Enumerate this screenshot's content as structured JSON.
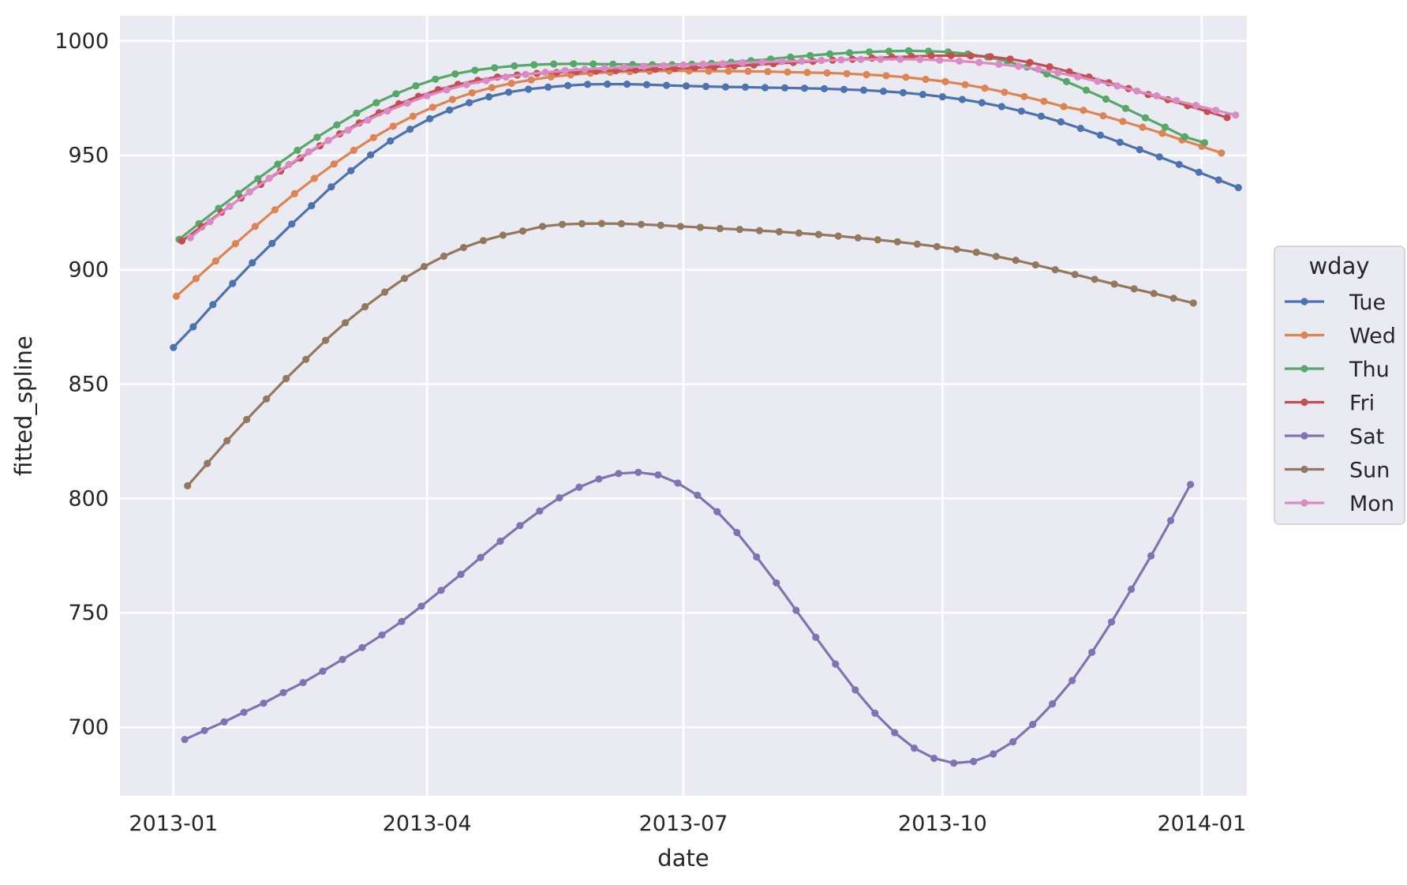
{
  "chart_data": {
    "type": "line",
    "xlabel": "date",
    "ylabel": "fitted_spline",
    "x_ticks": [
      "2013-01",
      "2013-04",
      "2013-07",
      "2013-10",
      "2014-01"
    ],
    "y_ticks": [
      700,
      750,
      800,
      850,
      900,
      950,
      1000
    ],
    "xlim": [
      "2012-12-13",
      "2014-01-17"
    ],
    "ylim": [
      670,
      1011
    ],
    "grid": true,
    "legend": {
      "title": "wday",
      "placement": "right"
    },
    "series": [
      {
        "name": "Tue",
        "color": "#4c72b0",
        "start": "2013-01-01",
        "step_days": 7,
        "values": [
          866,
          875,
          884.7,
          894,
          903,
          911.5,
          920,
          928,
          936.2,
          943.3,
          950.2,
          956.3,
          961.4,
          966,
          969.8,
          973,
          975.6,
          977.6,
          978.9,
          979.8,
          980.5,
          981,
          981.1,
          981.1,
          980.9,
          980.6,
          980.3,
          980.1,
          979.9,
          979.8,
          979.6,
          979.5,
          979.3,
          979.1,
          978.8,
          978.5,
          978,
          977.4,
          976.6,
          975.6,
          974.4,
          973,
          971.3,
          969.3,
          967.1,
          964.6,
          961.8,
          958.8,
          955.7,
          952.5,
          949.3,
          946,
          942.6,
          939.2,
          935.9
        ]
      },
      {
        "name": "Wed",
        "color": "#dd8452",
        "start": "2013-01-02",
        "step_days": 7,
        "values": [
          888.4,
          896.1,
          903.8,
          911.4,
          918.9,
          926.2,
          933.2,
          939.9,
          946.2,
          952.2,
          957.7,
          962.7,
          967.1,
          971,
          974.4,
          977.3,
          979.6,
          981.5,
          983,
          984.3,
          985.2,
          985.9,
          986.3,
          986.6,
          986.8,
          986.9,
          986.9,
          986.8,
          986.8,
          986.7,
          986.6,
          986.4,
          986.2,
          986,
          985.7,
          985.3,
          984.8,
          984.1,
          983.2,
          982.2,
          980.9,
          979.4,
          977.6,
          975.7,
          973.6,
          971.3,
          969.7,
          967.3,
          964.8,
          962.3,
          959.6,
          956.7,
          953.9,
          951
        ]
      },
      {
        "name": "Thu",
        "color": "#55a868",
        "start": "2013-01-03",
        "step_days": 7,
        "values": [
          913.3,
          920.1,
          926.8,
          933.3,
          939.8,
          946.1,
          952.2,
          957.9,
          963.3,
          968.4,
          973,
          976.9,
          980.4,
          983.3,
          985.6,
          987.2,
          988.3,
          989.1,
          989.6,
          989.9,
          990,
          989.9,
          989.8,
          989.7,
          989.6,
          989.6,
          989.8,
          990.2,
          990.7,
          991.4,
          992.1,
          992.9,
          993.6,
          994.3,
          994.8,
          995.2,
          995.5,
          995.7,
          995.5,
          995.2,
          994.3,
          993,
          991.1,
          988.6,
          985.6,
          982.2,
          978.5,
          974.6,
          970.5,
          966.4,
          962.3,
          958.1,
          955.5
        ]
      },
      {
        "name": "Fri",
        "color": "#c44e52",
        "start": "2013-01-04",
        "step_days": 7,
        "values": [
          912.6,
          918.8,
          925.1,
          931.3,
          937.3,
          943.1,
          948.8,
          954.2,
          959.4,
          964.2,
          968.6,
          972.5,
          975.8,
          978.7,
          981,
          982.8,
          984.2,
          985.1,
          985.8,
          986.2,
          986.6,
          986.8,
          987,
          987.3,
          987.6,
          987.9,
          988.3,
          988.7,
          989.1,
          989.5,
          990.1,
          990.6,
          991.1,
          991.6,
          992,
          992.5,
          992.9,
          993.2,
          993.5,
          993.6,
          993.5,
          993.1,
          992.1,
          990.6,
          988.7,
          986.5,
          984.2,
          981.7,
          979.2,
          976.6,
          974.3,
          971.7,
          969.2,
          966.5
        ]
      },
      {
        "name": "Sat",
        "color": "#8172b3",
        "start": "2013-01-05",
        "step_days": 7,
        "values": [
          694.6,
          698.5,
          702.3,
          706.5,
          710.5,
          715.1,
          719.5,
          724.5,
          729.6,
          734.8,
          740.3,
          746.2,
          752.9,
          759.8,
          766.8,
          774.2,
          781.3,
          788.1,
          794.5,
          800.3,
          804.9,
          808.5,
          810.9,
          811.4,
          810.3,
          806.7,
          801.4,
          794.2,
          785.1,
          774.4,
          763.1,
          751.1,
          739.3,
          727.6,
          716.3,
          706.1,
          697.6,
          690.8,
          686.4,
          684.3,
          685,
          688.3,
          693.6,
          701.2,
          710.2,
          720.4,
          732.7,
          746,
          760.3,
          774.9,
          790.3,
          806.1
        ]
      },
      {
        "name": "Sun",
        "color": "#937860",
        "start": "2013-01-06",
        "step_days": 7,
        "values": [
          805.5,
          815.3,
          825.2,
          834.5,
          843.5,
          852.4,
          860.8,
          869.1,
          876.8,
          883.8,
          890.2,
          896.2,
          901.4,
          905.9,
          909.7,
          912.7,
          915.1,
          916.9,
          918.9,
          919.8,
          920.1,
          920.2,
          920.1,
          919.8,
          919.4,
          918.9,
          918.5,
          918,
          917.6,
          917.1,
          916.6,
          916,
          915.4,
          914.7,
          913.9,
          913.1,
          912.2,
          911.2,
          910.1,
          908.9,
          907.6,
          905.8,
          904.1,
          902.1,
          900,
          897.9,
          895.8,
          893.7,
          891.6,
          889.6,
          887.5,
          885.4
        ]
      },
      {
        "name": "Mon",
        "color": "#da8bc3",
        "start": "2013-01-07",
        "step_days": 7,
        "values": [
          914,
          921,
          927.7,
          934,
          940,
          946,
          951.5,
          956.5,
          961,
          965.4,
          969.4,
          972.8,
          976,
          978.6,
          980.9,
          982.7,
          984.2,
          985.4,
          986.3,
          987,
          987.6,
          988.1,
          988.5,
          988.9,
          989.2,
          989.5,
          989.8,
          990.1,
          990.5,
          990.8,
          991,
          991.2,
          991.5,
          991.7,
          991.9,
          992,
          992,
          991.9,
          991.6,
          991.2,
          990.6,
          989.8,
          988.9,
          987.6,
          986.1,
          984.3,
          982.4,
          980.3,
          978.1,
          976,
          973.9,
          971.8,
          969.7,
          967.6
        ]
      }
    ]
  }
}
